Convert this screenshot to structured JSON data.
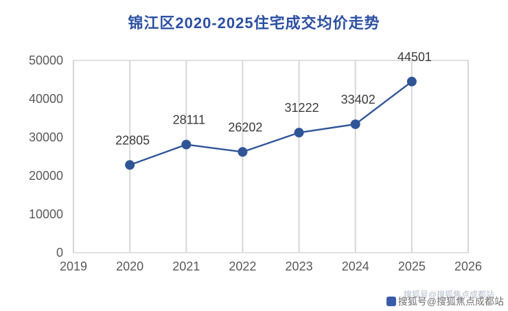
{
  "title": "锦江区2020-2025住宅成交均价走势",
  "watermark": {
    "text": "搜狐号@搜狐焦点成都站"
  },
  "chart_data": {
    "type": "line",
    "title": "锦江区2020-2025住宅成交均价走势",
    "x": [
      2020,
      2021,
      2022,
      2023,
      2024,
      2025
    ],
    "values": [
      22805,
      28111,
      26202,
      31222,
      33402,
      44501
    ],
    "xticks": [
      2019,
      2020,
      2021,
      2022,
      2023,
      2024,
      2025,
      2026
    ],
    "yticks": [
      0,
      10000,
      20000,
      30000,
      40000,
      50000
    ],
    "xlim": [
      2019,
      2026
    ],
    "ylim": [
      0,
      50000
    ],
    "xlabel": "",
    "ylabel": "",
    "grid": "vertical",
    "legend": "none",
    "line_color": "#2f5597",
    "marker": "circle",
    "label_color": "#3a3a3a",
    "tick_color": "#595959",
    "grid_color": "#d6d6d6"
  }
}
